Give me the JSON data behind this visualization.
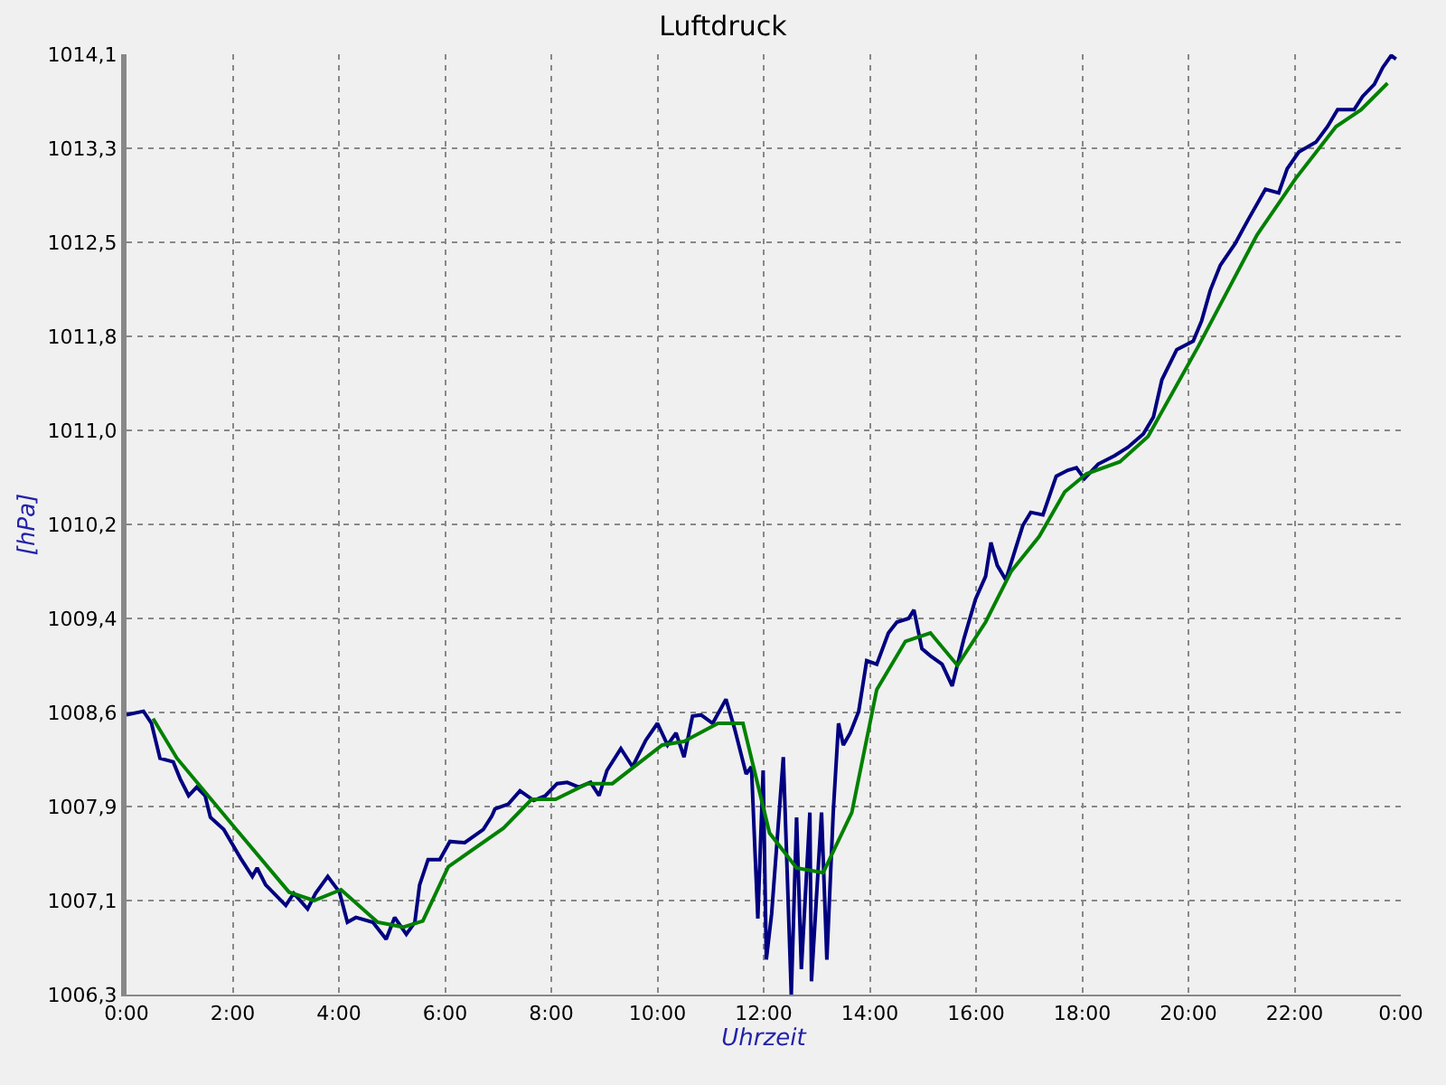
{
  "chart_data": {
    "type": "line",
    "title": "Luftdruck",
    "xlabel": "Uhrzeit",
    "ylabel": "[hPa]",
    "xlim": [
      0,
      24
    ],
    "xticks": [
      {
        "value": 0,
        "label": "0:00"
      },
      {
        "value": 2,
        "label": "2:00"
      },
      {
        "value": 4,
        "label": "4:00"
      },
      {
        "value": 6,
        "label": "6:00"
      },
      {
        "value": 8,
        "label": "8:00"
      },
      {
        "value": 10,
        "label": "10:00"
      },
      {
        "value": 12,
        "label": "12:00"
      },
      {
        "value": 14,
        "label": "14:00"
      },
      {
        "value": 16,
        "label": "16:00"
      },
      {
        "value": 18,
        "label": "18:00"
      },
      {
        "value": 20,
        "label": "20:00"
      },
      {
        "value": 22,
        "label": "22:00"
      },
      {
        "value": 24,
        "label": "0:00"
      }
    ],
    "ylim": [
      1006.3,
      1014.1
    ],
    "yticks": [
      {
        "value": 1006.3,
        "label": "1006,3"
      },
      {
        "value": 1007.08,
        "label": "1007,1"
      },
      {
        "value": 1007.86,
        "label": "1007,9"
      },
      {
        "value": 1008.64,
        "label": "1008,6"
      },
      {
        "value": 1009.42,
        "label": "1009,4"
      },
      {
        "value": 1010.2,
        "label": "1010,2"
      },
      {
        "value": 1010.98,
        "label": "1011,0"
      },
      {
        "value": 1011.76,
        "label": "1011,8"
      },
      {
        "value": 1012.54,
        "label": "1012,5"
      },
      {
        "value": 1013.32,
        "label": "1013,3"
      },
      {
        "value": 1014.1,
        "label": "1014,1"
      }
    ],
    "grid": true,
    "marker": "none",
    "line_style": "solid",
    "series": [
      {
        "color": "#000080",
        "x": [
          0,
          0.32,
          0.47,
          0.63,
          0.88,
          1.01,
          1.17,
          1.32,
          1.48,
          1.58,
          1.83,
          2.15,
          2.37,
          2.46,
          2.62,
          3.0,
          3.15,
          3.41,
          3.56,
          3.79,
          4.01,
          4.16,
          4.32,
          4.64,
          4.89,
          5.05,
          5.27,
          5.43,
          5.52,
          5.68,
          5.9,
          6.09,
          6.37,
          6.72,
          6.88,
          6.94,
          7.19,
          7.41,
          7.67,
          7.89,
          8.11,
          8.3,
          8.52,
          8.74,
          8.9,
          9.05,
          9.31,
          9.53,
          9.78,
          10.0,
          10.19,
          10.35,
          10.5,
          10.66,
          10.82,
          11.04,
          11.29,
          11.45,
          11.67,
          11.77,
          11.89,
          11.99,
          12.05,
          12.15,
          12.37,
          12.52,
          12.62,
          12.71,
          12.87,
          12.9,
          13.09,
          13.19,
          13.31,
          13.41,
          13.5,
          13.63,
          13.79,
          13.94,
          14.13,
          14.35,
          14.51,
          14.73,
          14.83,
          14.98,
          15.14,
          15.36,
          15.55,
          15.77,
          15.99,
          16.18,
          16.28,
          16.4,
          16.56,
          16.88,
          17.03,
          17.26,
          17.51,
          17.73,
          17.89,
          18.04,
          18.3,
          18.61,
          18.86,
          19.15,
          19.34,
          19.5,
          19.78,
          20.09,
          20.25,
          20.41,
          20.6,
          20.88,
          21.14,
          21.45,
          21.7,
          21.86,
          22.08,
          22.4,
          22.62,
          22.81,
          23.12,
          23.28,
          23.5,
          23.66,
          23.82,
          23.91
        ],
        "values": [
          1008.62,
          1008.65,
          1008.55,
          1008.26,
          1008.23,
          1008.09,
          1007.95,
          1008.02,
          1007.95,
          1007.77,
          1007.67,
          1007.43,
          1007.28,
          1007.35,
          1007.21,
          1007.04,
          1007.14,
          1007.01,
          1007.14,
          1007.28,
          1007.15,
          1006.9,
          1006.94,
          1006.9,
          1006.76,
          1006.94,
          1006.8,
          1006.9,
          1007.21,
          1007.42,
          1007.42,
          1007.57,
          1007.56,
          1007.67,
          1007.78,
          1007.84,
          1007.88,
          1007.99,
          1007.91,
          1007.95,
          1008.05,
          1008.06,
          1008.02,
          1008.06,
          1007.95,
          1008.16,
          1008.34,
          1008.19,
          1008.41,
          1008.55,
          1008.37,
          1008.47,
          1008.27,
          1008.61,
          1008.62,
          1008.55,
          1008.75,
          1008.51,
          1008.13,
          1008.19,
          1006.93,
          1008.16,
          1006.59,
          1006.97,
          1008.27,
          1006.3,
          1007.77,
          1006.51,
          1007.81,
          1006.41,
          1007.81,
          1006.59,
          1007.81,
          1008.55,
          1008.37,
          1008.47,
          1008.65,
          1009.07,
          1009.04,
          1009.3,
          1009.39,
          1009.42,
          1009.49,
          1009.17,
          1009.11,
          1009.04,
          1008.86,
          1009.25,
          1009.58,
          1009.77,
          1010.05,
          1009.86,
          1009.74,
          1010.19,
          1010.3,
          1010.28,
          1010.6,
          1010.65,
          1010.67,
          1010.58,
          1010.7,
          1010.77,
          1010.84,
          1010.95,
          1011.09,
          1011.4,
          1011.65,
          1011.72,
          1011.89,
          1012.14,
          1012.35,
          1012.53,
          1012.74,
          1012.98,
          1012.95,
          1013.15,
          1013.29,
          1013.37,
          1013.5,
          1013.64,
          1013.64,
          1013.75,
          1013.85,
          1013.99,
          1014.09,
          1014.06
        ]
      },
      {
        "color": "#008000",
        "x": [
          0.5,
          0.95,
          1.99,
          3.06,
          3.53,
          4.04,
          4.73,
          5.21,
          5.58,
          6.06,
          7.1,
          7.63,
          8.08,
          8.68,
          9.15,
          10.09,
          10.5,
          11.14,
          11.61,
          12.11,
          12.62,
          13.12,
          13.66,
          14.13,
          14.67,
          15.14,
          15.65,
          16.18,
          16.66,
          17.19,
          17.67,
          18.08,
          18.71,
          19.24,
          20.19,
          21.29,
          22.02,
          22.78,
          23.25,
          23.75
        ],
        "values": [
          1008.59,
          1008.26,
          1007.71,
          1007.15,
          1007.08,
          1007.17,
          1006.9,
          1006.86,
          1006.91,
          1007.36,
          1007.68,
          1007.92,
          1007.92,
          1008.05,
          1008.05,
          1008.37,
          1008.4,
          1008.55,
          1008.55,
          1007.64,
          1007.35,
          1007.31,
          1007.81,
          1008.83,
          1009.23,
          1009.3,
          1009.03,
          1009.39,
          1009.81,
          1010.1,
          1010.47,
          1010.62,
          1010.72,
          1010.93,
          1011.68,
          1012.6,
          1013.07,
          1013.5,
          1013.64,
          1013.86
        ]
      }
    ]
  }
}
